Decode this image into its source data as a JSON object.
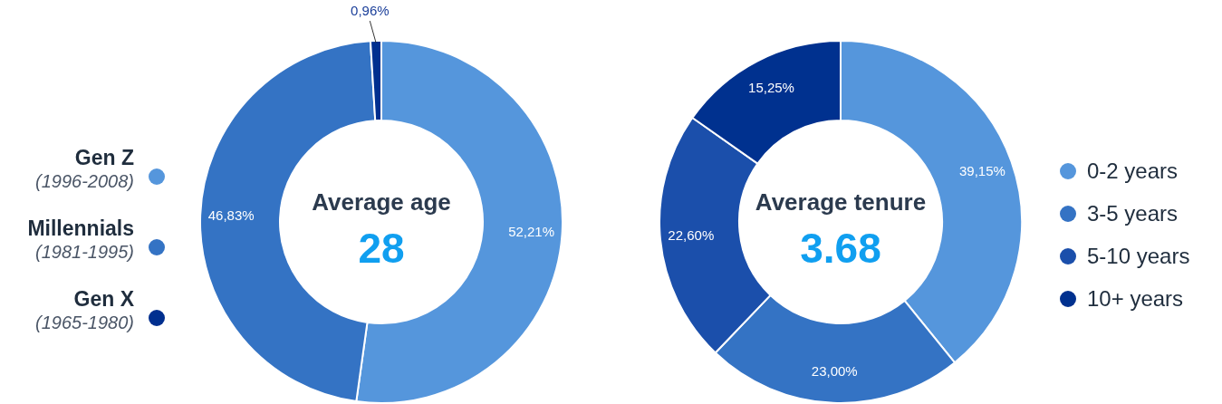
{
  "chart_data": [
    {
      "type": "donut",
      "categories": [
        "Gen Z\n(1996-2008)",
        "Millennials\n(1981-1995)",
        "Gen X\n(1965-1980)"
      ],
      "values": [
        52.21,
        46.83,
        0.96
      ],
      "colors": [
        "#5596dc",
        "#3473c4",
        "#002f8f"
      ],
      "value_labels": [
        "52,21%",
        "46,83%",
        "0,96%"
      ],
      "annotations": [
        "Average age",
        "28"
      ],
      "legend": "left"
    },
    {
      "type": "donut",
      "categories": [
        "0-2 years",
        "3-5 years",
        "5-10 years",
        "10+ years"
      ],
      "values": [
        39.15,
        23.0,
        22.6,
        15.25
      ],
      "colors": [
        "#5596dc",
        "#3473c4",
        "#1b4fab",
        "#00318f"
      ],
      "value_labels": [
        "39,15%",
        "23,00%",
        "22,60%",
        "15,25%"
      ],
      "annotations": [
        "Average tenure",
        "3.68"
      ],
      "legend": "right"
    }
  ]
}
